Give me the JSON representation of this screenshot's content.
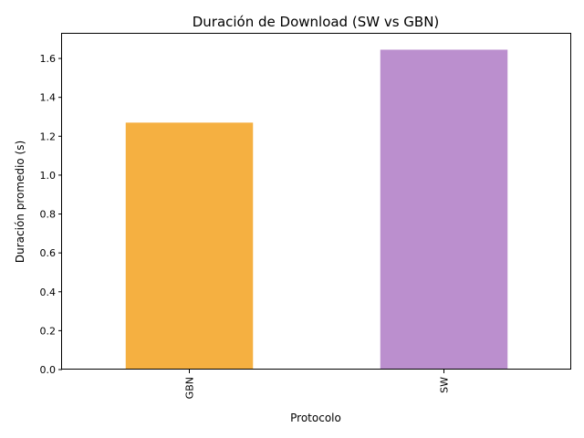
{
  "chart_data": {
    "type": "bar",
    "title": "Duración de Download (SW vs GBN)",
    "xlabel": "Protocolo",
    "ylabel": "Duración promedio (s)",
    "categories": [
      "GBN",
      "SW"
    ],
    "values": [
      1.27,
      1.645
    ],
    "colors": [
      "#f5b041",
      "#bb8fce"
    ],
    "ylim": [
      0,
      1.727
    ],
    "yticks": [
      "0.0",
      "0.2",
      "0.4",
      "0.6",
      "0.8",
      "1.0",
      "1.2",
      "1.4",
      "1.6"
    ],
    "x_tick_rotation": "vertical",
    "grid": false,
    "legend": "none"
  }
}
